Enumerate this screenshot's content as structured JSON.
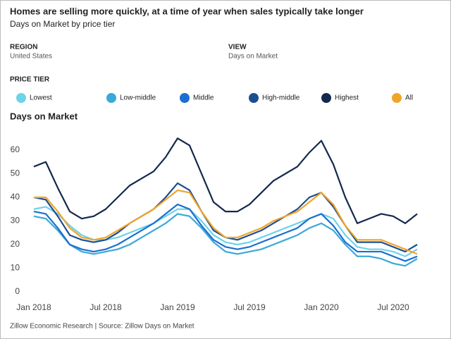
{
  "header": {
    "title": "Homes are selling more quickly, at a time of year when sales typically take longer",
    "subtitle": "Days on Market by price tier"
  },
  "filters": [
    {
      "label": "REGION",
      "value": "United States"
    },
    {
      "label": "VIEW",
      "value": "Days on Market"
    }
  ],
  "legend_title": "PRICE TIER",
  "footer": "Zillow Economic Research | Source: Zillow Days on Market",
  "chart_data": {
    "type": "line",
    "title": "Days on Market",
    "categories": [
      "Jan 2018",
      null,
      null,
      null,
      null,
      null,
      "Jul 2018",
      null,
      null,
      null,
      null,
      null,
      "Jan 2019",
      null,
      null,
      null,
      null,
      null,
      "Jul 2019",
      null,
      null,
      null,
      null,
      null,
      "Jan 2020",
      null,
      null,
      null,
      null,
      null,
      "Jul 2020",
      null,
      null
    ],
    "ylim": [
      0,
      60
    ],
    "yticks": [
      0,
      10,
      20,
      30,
      40,
      50,
      60
    ],
    "grid": false,
    "series": [
      {
        "name": "Lowest",
        "color": "#6dd3e8",
        "values": [
          35,
          36,
          33,
          28,
          24,
          22,
          22,
          23,
          25,
          27,
          29,
          32,
          35,
          35,
          30,
          24,
          21,
          20,
          21,
          23,
          25,
          27,
          29,
          31,
          33,
          31,
          24,
          19,
          18,
          18,
          17,
          15,
          18
        ]
      },
      {
        "name": "Low-middle",
        "color": "#3aa8d8",
        "values": [
          32,
          31,
          26,
          20,
          17,
          16,
          17,
          18,
          20,
          23,
          26,
          29,
          33,
          32,
          27,
          21,
          17,
          16,
          17,
          18,
          20,
          22,
          24,
          27,
          29,
          26,
          20,
          15,
          15,
          14,
          12,
          11,
          14
        ]
      },
      {
        "name": "Middle",
        "color": "#1a6fd0",
        "values": [
          34,
          33,
          27,
          20,
          18,
          17,
          18,
          20,
          23,
          26,
          29,
          33,
          37,
          35,
          28,
          22,
          19,
          18,
          19,
          21,
          23,
          25,
          27,
          31,
          33,
          28,
          21,
          17,
          17,
          17,
          15,
          13,
          15
        ]
      },
      {
        "name": "High-middle",
        "color": "#1d4e91",
        "values": [
          40,
          39,
          32,
          24,
          22,
          21,
          22,
          25,
          29,
          32,
          35,
          40,
          46,
          43,
          34,
          26,
          23,
          22,
          24,
          26,
          29,
          32,
          35,
          40,
          42,
          36,
          28,
          21,
          21,
          21,
          19,
          17,
          20
        ]
      },
      {
        "name": "Highest",
        "color": "#13284d",
        "values": [
          53,
          55,
          44,
          34,
          31,
          32,
          35,
          40,
          45,
          48,
          51,
          57,
          65,
          62,
          50,
          38,
          34,
          34,
          37,
          42,
          47,
          50,
          53,
          59,
          64,
          54,
          40,
          29,
          31,
          33,
          32,
          29,
          33
        ]
      },
      {
        "name": "All",
        "color": "#f0a52a",
        "values": [
          40,
          40,
          34,
          27,
          23,
          22,
          23,
          26,
          29,
          32,
          35,
          39,
          43,
          42,
          34,
          27,
          23,
          23,
          25,
          27,
          30,
          32,
          34,
          38,
          42,
          37,
          28,
          22,
          22,
          22,
          20,
          18,
          16
        ]
      }
    ]
  }
}
